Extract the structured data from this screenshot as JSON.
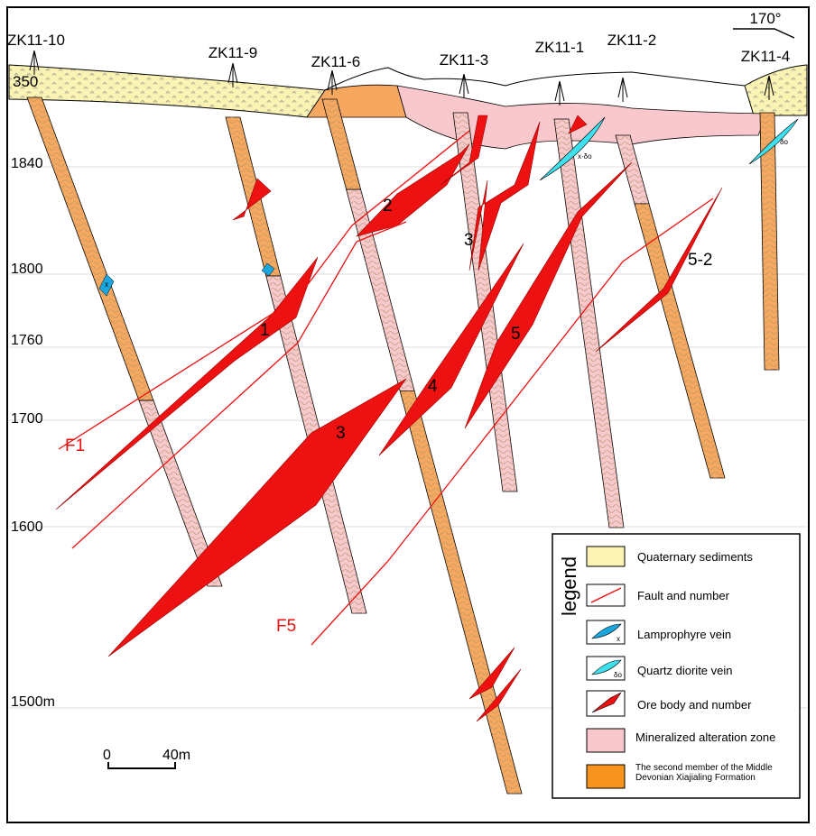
{
  "orientation": "170°",
  "boreholes": [
    "ZK11-10",
    "ZK11-9",
    "ZK11-6",
    "ZK11-3",
    "ZK11-1",
    "ZK11-2",
    "ZK11-4"
  ],
  "surface_label": "350",
  "elevations": [
    "1840",
    "1800",
    "1760",
    "1700",
    "1600",
    "1500m"
  ],
  "ore_bodies": [
    "1",
    "2",
    "3",
    "3",
    "4",
    "5",
    "5-2"
  ],
  "faults": [
    "F1",
    "F5"
  ],
  "vein_labels": [
    "x",
    "x·δo",
    "δo"
  ],
  "scale": {
    "start": "0",
    "end": "40m"
  },
  "legend": {
    "title": "legend",
    "items": [
      "Quaternary sediments",
      "Fault and number",
      "Lamprophyre vein",
      "Quartz diorite vein",
      "Ore body and number",
      "Mineralized alteration zone",
      "The second member of the Middle Devonian Xiajialing Formation"
    ],
    "icon_labels": [
      "x",
      "δo"
    ]
  }
}
